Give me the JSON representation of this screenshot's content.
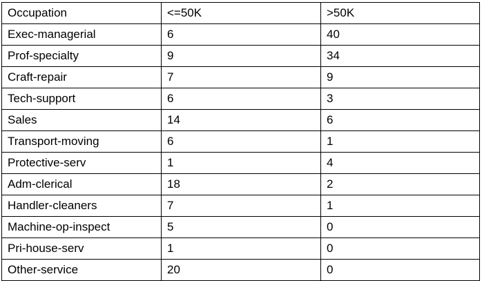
{
  "table": {
    "headers": [
      "Occupation",
      "<=50K",
      ">50K"
    ],
    "rows": [
      [
        "Exec-managerial",
        "6",
        "40"
      ],
      [
        "Prof-specialty",
        "9",
        "34"
      ],
      [
        "Craft-repair",
        "7",
        "9"
      ],
      [
        "Tech-support",
        "6",
        "3"
      ],
      [
        "Sales",
        "14",
        "6"
      ],
      [
        "Transport-moving",
        "6",
        "1"
      ],
      [
        "Protective-serv",
        "1",
        "4"
      ],
      [
        "Adm-clerical",
        "18",
        "2"
      ],
      [
        "Handler-cleaners",
        "7",
        "1"
      ],
      [
        "Machine-op-inspect",
        "5",
        "0"
      ],
      [
        "Pri-house-serv",
        "1",
        "0"
      ],
      [
        "Other-service",
        "20",
        "0"
      ]
    ]
  }
}
